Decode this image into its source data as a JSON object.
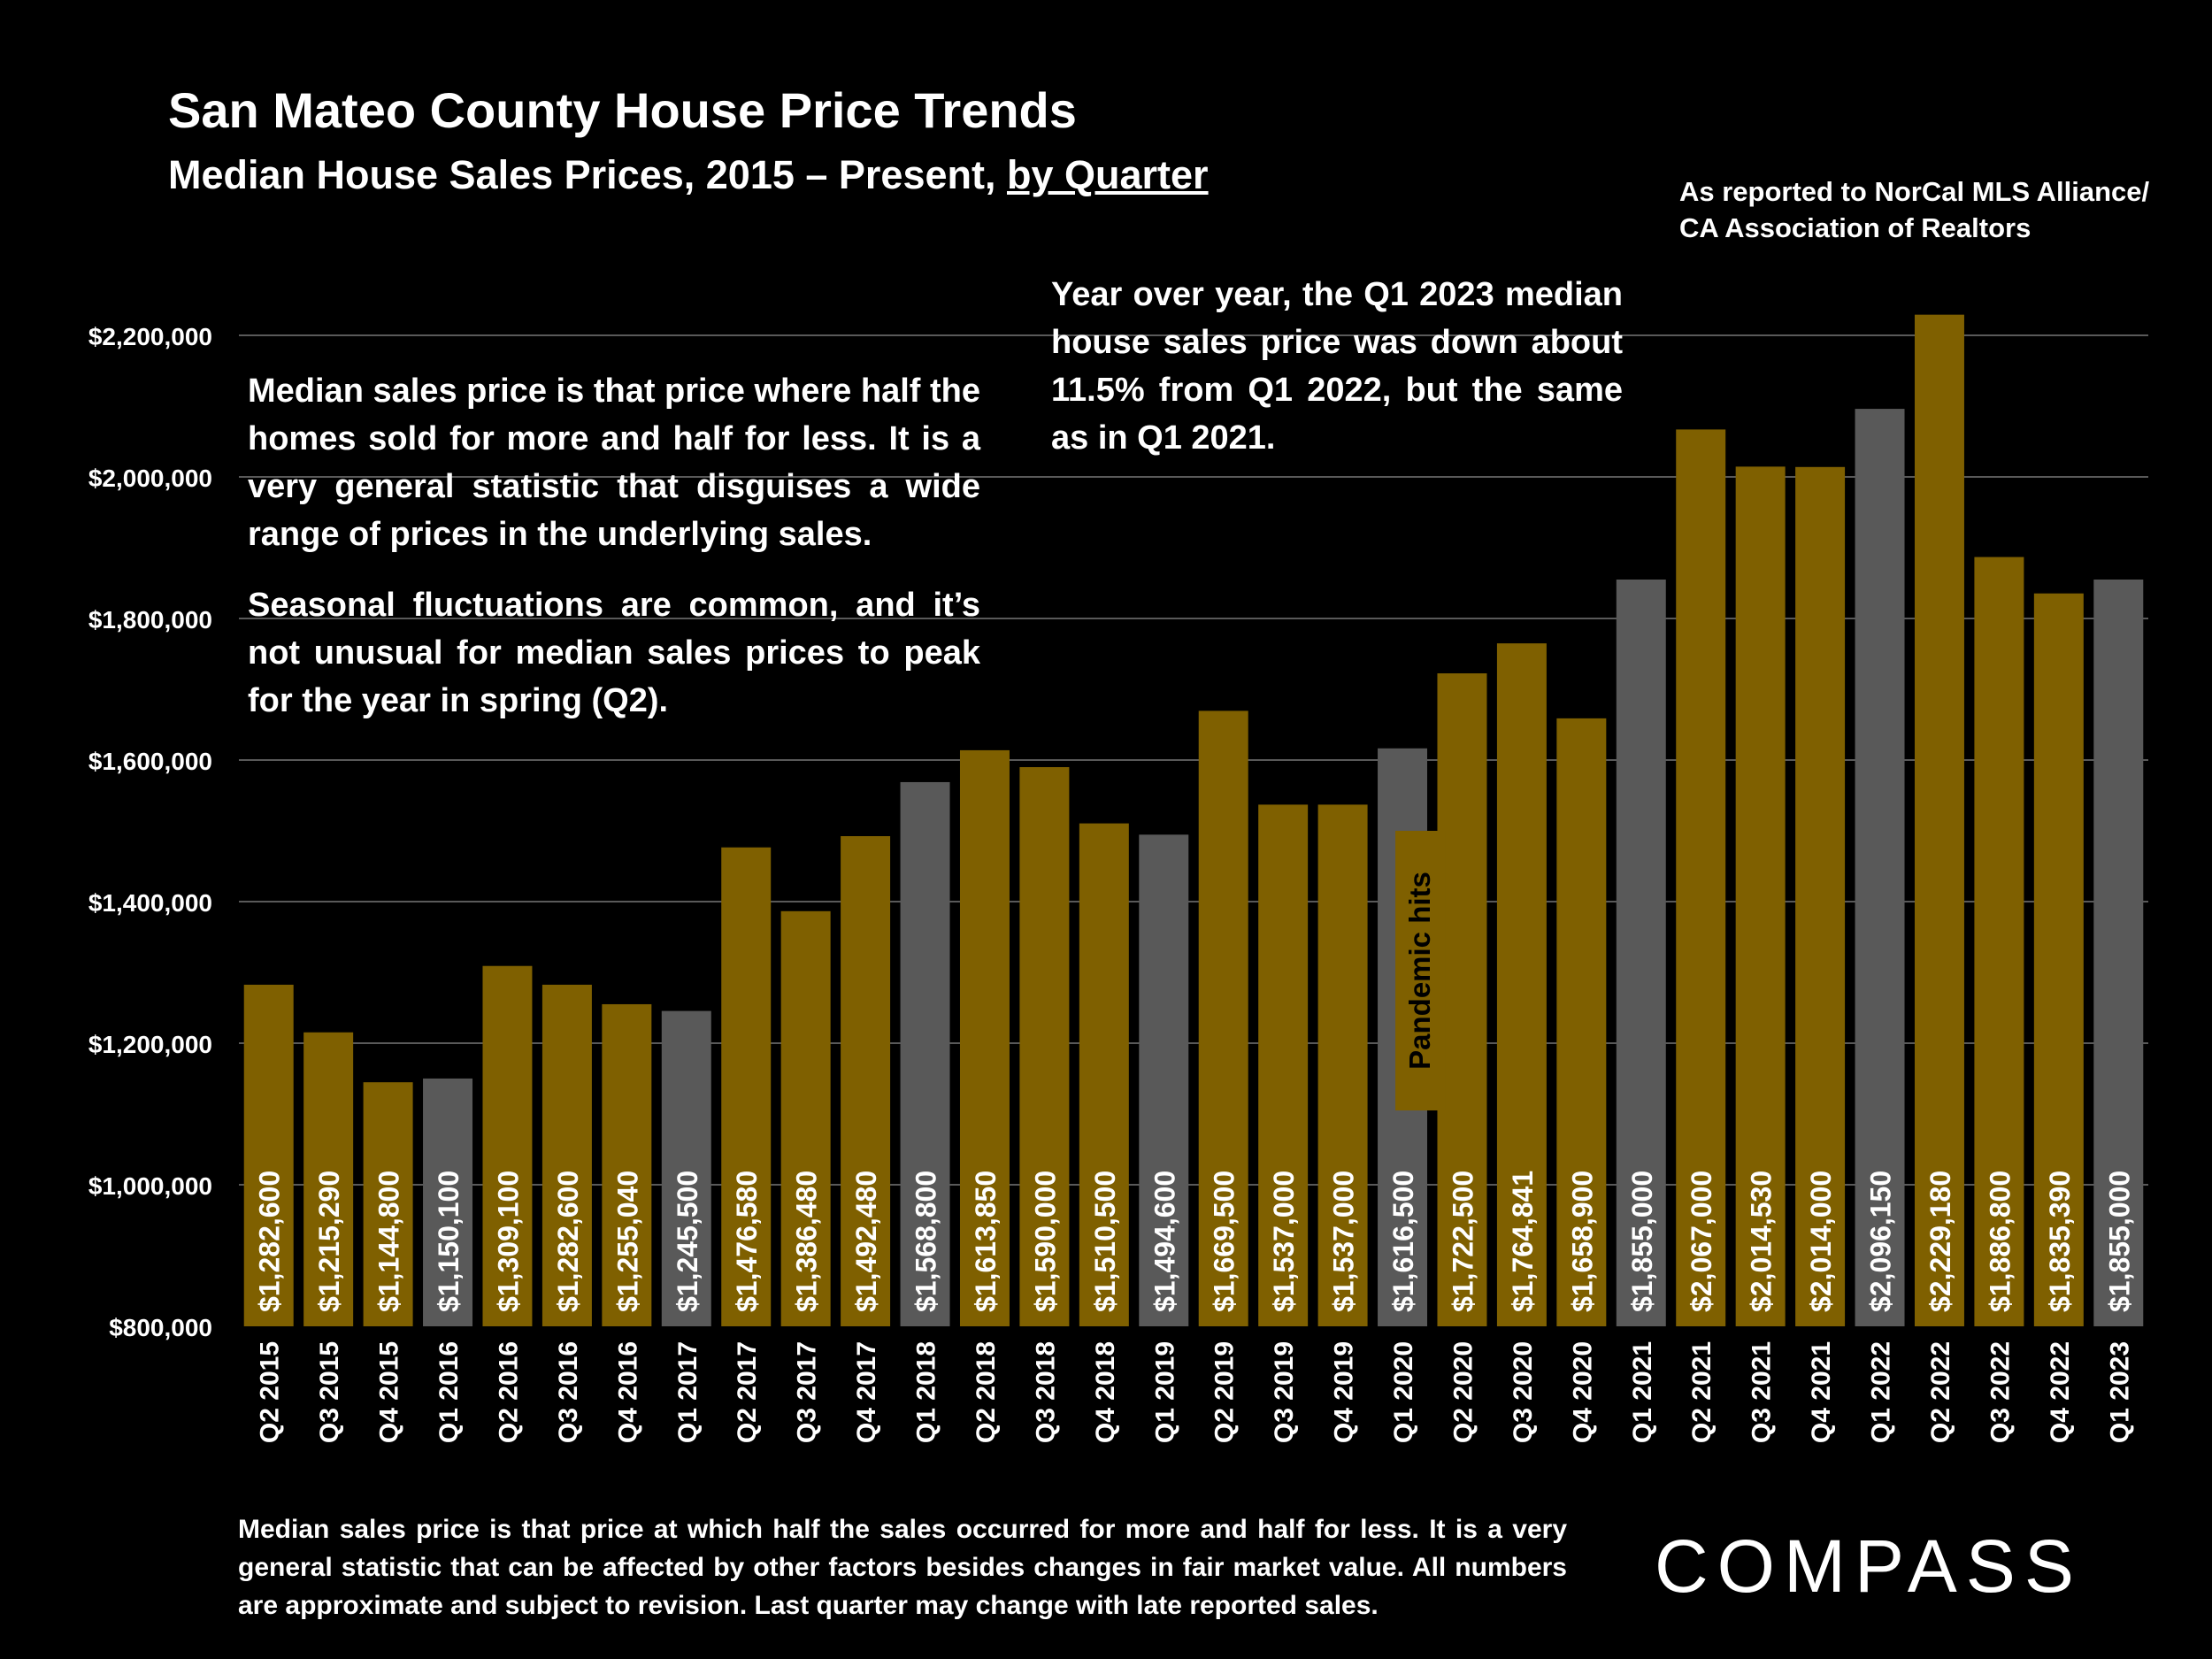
{
  "header": {
    "title": "San Mateo County House Price Trends",
    "subtitle_main": "Median House Sales Prices, 2015 – Present, ",
    "subtitle_link": "by Quarter",
    "source": "As reported to NorCal MLS Alliance/\nCA Association of Realtors"
  },
  "notes": {
    "left_1": "Median sales price is that price where half the homes sold for more and half for less. It is a very general statistic that disguises a wide range of prices in the underlying sales.",
    "left_2": "Seasonal fluctuations are common, and it’s not unusual for median sales prices to peak for the year in spring (Q2).",
    "right": "Year over year, the Q1 2023 median house sales price was down about 11.5% from Q1 2022, but the same as in Q1 2021."
  },
  "footnote": "Median sales price is that price at which half the sales occurred for more and half for less. It is a very general statistic that can be affected by other factors besides changes in fair market value. All numbers are approximate and subject to revision. Last quarter may change with late reported sales.",
  "logo": {
    "text": "COMPASS"
  },
  "colors": {
    "background": "#000000",
    "bar_gold": "#7F6000",
    "bar_gray": "#595959",
    "gridline": "#595959",
    "text": "#FFFFFF"
  },
  "chart_data": {
    "type": "bar",
    "title": "San Mateo County House Price Trends",
    "subtitle": "Median House Sales Prices, 2015 – Present, by Quarter",
    "xlabel": "",
    "ylabel": "",
    "ylim": [
      800000,
      2200000
    ],
    "grid": true,
    "yticks": [
      800000,
      1000000,
      1200000,
      1400000,
      1600000,
      1800000,
      2000000,
      2200000
    ],
    "ytick_labels": [
      "$800,000",
      "$1,000,000",
      "$1,200,000",
      "$1,400,000",
      "$1,600,000",
      "$1,800,000",
      "$2,000,000",
      "$2,200,000"
    ],
    "categories": [
      "Q2 2015",
      "Q3 2015",
      "Q4 2015",
      "Q1 2016",
      "Q2 2016",
      "Q3 2016",
      "Q4 2016",
      "Q1 2017",
      "Q2 2017",
      "Q3 2017",
      "Q4 2017",
      "Q1 2018",
      "Q2 2018",
      "Q3 2018",
      "Q4 2018",
      "Q1 2019",
      "Q2 2019",
      "Q3 2019",
      "Q4 2019",
      "Q1 2020",
      "Q2 2020",
      "Q3 2020",
      "Q4 2020",
      "Q1 2021",
      "Q2 2021",
      "Q3 2021",
      "Q4 2021",
      "Q1 2022",
      "Q2 2022",
      "Q3 2022",
      "Q4 2022",
      "Q1 2023"
    ],
    "values": [
      1282600,
      1215290,
      1144800,
      1150100,
      1309100,
      1282600,
      1255040,
      1245500,
      1476580,
      1386480,
      1492480,
      1568800,
      1613850,
      1590000,
      1510500,
      1494600,
      1669500,
      1537000,
      1537000,
      1616500,
      1722500,
      1764841,
      1658900,
      1855000,
      2067000,
      2014530,
      2014000,
      2096150,
      2229180,
      1886800,
      1835390,
      1855000
    ],
    "value_labels": [
      "$1,282,600",
      "$1,215,290",
      "$1,144,800",
      "$1,150,100",
      "$1,309,100",
      "$1,282,600",
      "$1,255,040",
      "$1,245,500",
      "$1,476,580",
      "$1,386,480",
      "$1,492,480",
      "$1,568,800",
      "$1,613,850",
      "$1,590,000",
      "$1,510,500",
      "$1,494,600",
      "$1,669,500",
      "$1,537,000",
      "$1,537,000",
      "$1,616,500",
      "$1,722,500",
      "$1,764,841",
      "$1,658,900",
      "$1,855,000",
      "$2,067,000",
      "$2,014,530",
      "$2,014,000",
      "$2,096,150",
      "$2,229,180",
      "$1,886,800",
      "$1,835,390",
      "$1,855,000"
    ],
    "bar_colors": [
      "gold",
      "gold",
      "gold",
      "gray",
      "gold",
      "gold",
      "gold",
      "gray",
      "gold",
      "gold",
      "gold",
      "gray",
      "gold",
      "gold",
      "gold",
      "gray",
      "gold",
      "gold",
      "gold",
      "gray",
      "gold",
      "gold",
      "gold",
      "gray",
      "gold",
      "gold",
      "gold",
      "gray",
      "gold",
      "gold",
      "gold",
      "gray"
    ],
    "annotations": [
      {
        "text": "Pandemic hits",
        "category": "Q1 2020",
        "value_top": 1500000,
        "value_bottom": 1105000
      }
    ]
  }
}
